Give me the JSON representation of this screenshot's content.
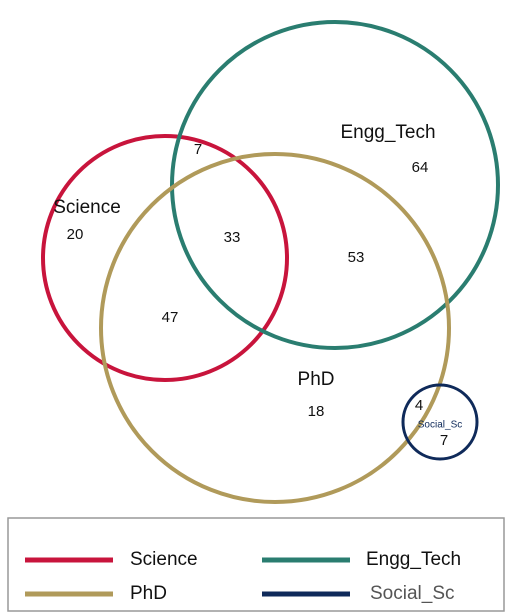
{
  "sets": [
    {
      "name": "Science",
      "color": "#c8143c"
    },
    {
      "name": "Engg_Tech",
      "color": "#2a7d70"
    },
    {
      "name": "PhD",
      "color": "#b09a5a"
    },
    {
      "name": "Social_Sc",
      "color": "#0f2a5a"
    }
  ],
  "region_counts": [
    20,
    7,
    33,
    47,
    64,
    53,
    18,
    4,
    7
  ]
}
